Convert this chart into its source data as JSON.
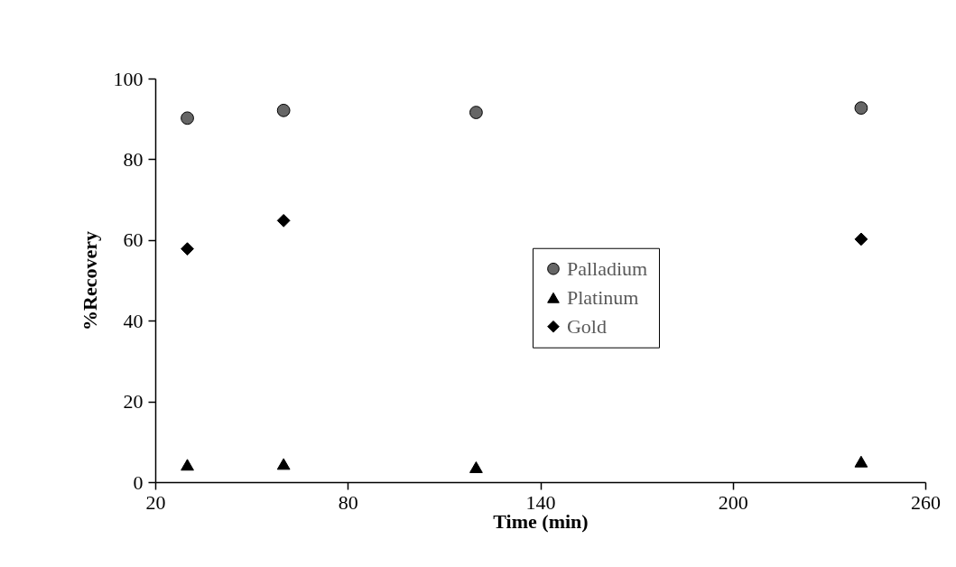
{
  "chart_data": {
    "type": "scatter",
    "xlabel": "Time (min)",
    "ylabel": "%Recovery",
    "x": [
      30,
      60,
      120,
      240
    ],
    "xlim": [
      20,
      260
    ],
    "xticks": [
      20,
      80,
      140,
      200,
      260
    ],
    "ylim": [
      0,
      100
    ],
    "yticks": [
      0,
      20,
      40,
      60,
      80,
      100
    ],
    "grid": false,
    "legend": "right",
    "series": [
      {
        "name": "Palladium",
        "color": "#666666",
        "marker": "circle",
        "values": [
          90.2,
          92.1,
          91.6,
          92.7
        ]
      },
      {
        "name": "Platinum",
        "color": "#000000",
        "marker": "triangle",
        "values": [
          4.3,
          4.5,
          3.7,
          5.1
        ]
      },
      {
        "name": "Gold",
        "color": "#000000",
        "marker": "diamond",
        "values": [
          57.8,
          64.8,
          null,
          60.2
        ]
      }
    ]
  }
}
